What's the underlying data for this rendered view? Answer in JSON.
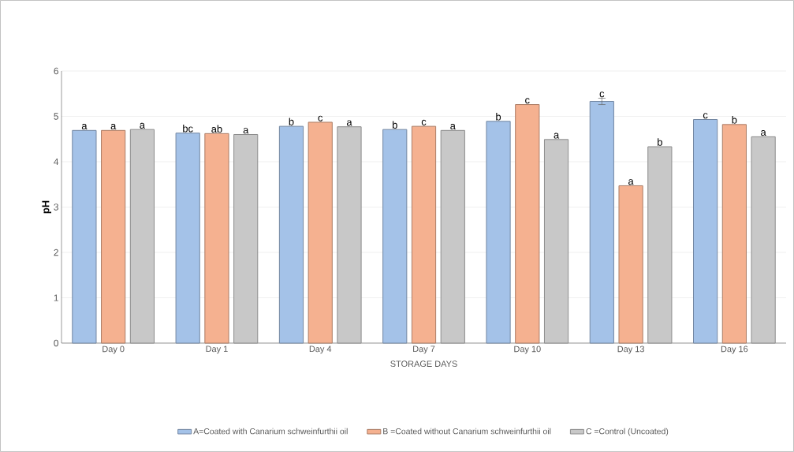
{
  "chart_data": {
    "type": "bar",
    "xlabel": "STORAGE DAYS",
    "ylabel": "pH",
    "categories": [
      "Day 0",
      "Day 1",
      "Day 4",
      "Day 7",
      "Day 10",
      "Day 13",
      "Day 16"
    ],
    "series": [
      {
        "name": "A=Coated with Canarium schweinfurthii oil",
        "color": "#a4c2e8",
        "values": [
          4.69,
          4.63,
          4.78,
          4.71,
          4.89,
          5.33,
          4.93
        ],
        "errors": [
          null,
          null,
          null,
          null,
          null,
          0.07,
          null
        ],
        "value_labels": [
          "a",
          "bc",
          "b",
          "b",
          "b",
          "c",
          "c"
        ]
      },
      {
        "name": "B =Coated without Canarium schweinfurthii oil",
        "color": "#f5b190",
        "values": [
          4.69,
          4.62,
          4.87,
          4.78,
          5.26,
          3.47,
          4.82
        ],
        "value_labels": [
          "a",
          "ab",
          "c",
          "c",
          "c",
          "a",
          "b"
        ]
      },
      {
        "name": "C =Control (Uncoated)",
        "color": "#c8c8c8",
        "values": [
          4.71,
          4.6,
          4.77,
          4.69,
          4.49,
          4.33,
          4.55
        ],
        "value_labels": [
          "a",
          "a",
          "a",
          "a",
          "a",
          "b",
          "a"
        ]
      }
    ],
    "ylim": [
      0,
      6
    ],
    "yticks": [
      0,
      1,
      2,
      3,
      4,
      5,
      6
    ],
    "grid": "y",
    "legend": "bottom"
  }
}
